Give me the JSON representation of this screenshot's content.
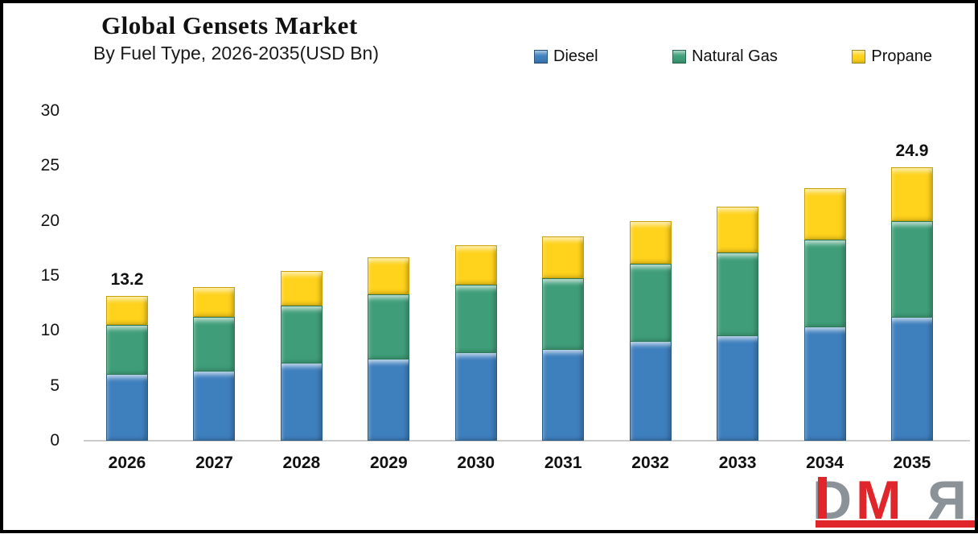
{
  "header": {
    "title": "Global Gensets Market",
    "subtitle": "By Fuel Type, 2026-2035(USD Bn)"
  },
  "legend": [
    {
      "label": "Diesel",
      "color": "#3e7fbe"
    },
    {
      "label": "Natural Gas",
      "color": "#3f9e79"
    },
    {
      "label": "Propane",
      "color": "#ffd21c"
    }
  ],
  "chart_data": {
    "type": "bar",
    "stacked": true,
    "title": "Global Gensets Market",
    "subtitle": "By Fuel Type, 2026-2035(USD Bn)",
    "unit": "USD Bn",
    "categories": [
      "2026",
      "2027",
      "2028",
      "2029",
      "2030",
      "2031",
      "2032",
      "2033",
      "2034",
      "2035"
    ],
    "series": [
      {
        "name": "Diesel",
        "color": "#3e7fbe",
        "values": [
          6.0,
          6.3,
          7.0,
          7.4,
          8.0,
          8.3,
          9.0,
          9.5,
          10.3,
          11.2
        ]
      },
      {
        "name": "Natural Gas",
        "color": "#3f9e79",
        "values": [
          4.5,
          5.0,
          5.3,
          5.9,
          6.2,
          6.5,
          7.1,
          7.6,
          8.0,
          8.8
        ]
      },
      {
        "name": "Propane",
        "color": "#ffd21c",
        "values": [
          2.7,
          2.7,
          3.1,
          3.4,
          3.6,
          3.8,
          3.9,
          4.2,
          4.7,
          4.9
        ]
      }
    ],
    "totals": [
      13.2,
      14.0,
      15.4,
      16.7,
      17.8,
      18.6,
      20.0,
      21.3,
      23.0,
      24.9
    ],
    "total_labels_shown": {
      "2026": "13.2",
      "2035": "24.9"
    },
    "ytick_labels": [
      "0",
      "5",
      "10",
      "15",
      "20",
      "25",
      "30"
    ],
    "ytick_values": [
      0,
      5,
      10,
      15,
      20,
      25,
      30
    ],
    "ylim": [
      0,
      30
    ],
    "grid": false,
    "legend_position": "top"
  },
  "logo": {
    "letter_d": "D",
    "letter_m": "M",
    "letter_r": "R",
    "gray": "#8b9399",
    "red": "#e0262a"
  }
}
